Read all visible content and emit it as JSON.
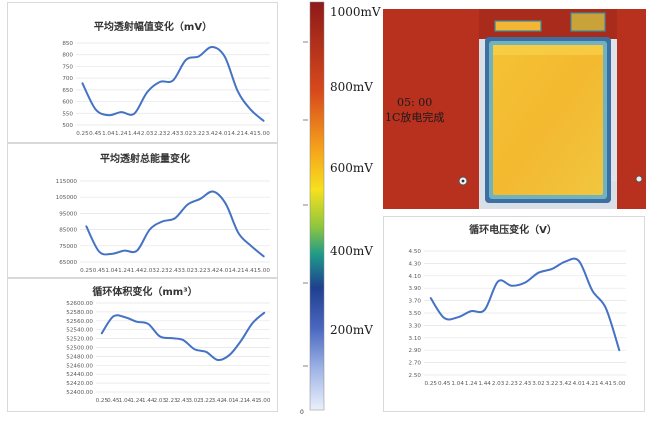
{
  "color_scale": {
    "labels": [
      "1000mV",
      "800mV",
      "600mV",
      "400mV",
      "200mV"
    ],
    "axis_zero": "0"
  },
  "heatmap": {
    "time_text": "05: 00",
    "status_text": "1C放电完成"
  },
  "chart_data": [
    {
      "type": "line",
      "title": "平均透射幅值变化（mV）",
      "categories": [
        "0.25",
        "0.45",
        "1.04",
        "1.24",
        "1.44",
        "2.03",
        "2.23",
        "2.43",
        "3.02",
        "3.22",
        "3.42",
        "4.01",
        "4.21",
        "4.41",
        "5.00"
      ],
      "values": [
        678,
        568,
        542,
        555,
        548,
        640,
        684,
        690,
        778,
        793,
        833,
        792,
        645,
        566,
        518
      ],
      "yticks": [
        500,
        550,
        600,
        650,
        700,
        750,
        800,
        850
      ],
      "ytick_labels": [
        "500",
        "550",
        "600",
        "650",
        "700",
        "750",
        "800",
        "850"
      ],
      "ylim": [
        500,
        850
      ],
      "grid": true,
      "color": "#4472c4"
    },
    {
      "type": "line",
      "title": "平均透射总能量变化",
      "categories": [
        "0.25",
        "0.45",
        "1.04",
        "1.24",
        "1.44",
        "2.03",
        "2.23",
        "2.43",
        "3.02",
        "3.22",
        "3.42",
        "4.01",
        "4.21",
        "4.41",
        "5.00"
      ],
      "values": [
        87000,
        71500,
        70000,
        72000,
        72000,
        85000,
        90000,
        92000,
        100500,
        104000,
        108500,
        101000,
        83000,
        75000,
        68500
      ],
      "yticks": [
        65000,
        75000,
        85000,
        95000,
        105000,
        115000
      ],
      "ytick_labels": [
        "65000",
        "75000",
        "85000",
        "95000",
        "105000",
        "115000"
      ],
      "ylim": [
        65000,
        115000
      ],
      "grid": true,
      "color": "#4472c4"
    },
    {
      "type": "line",
      "title": "循环体积变化（mm³）",
      "categories": [
        "0.25",
        "0.45",
        "1.04",
        "1.24",
        "1.44",
        "2.03",
        "2.23",
        "2.43",
        "3.02",
        "3.22",
        "3.42",
        "4.01",
        "4.21",
        "4.41",
        "5.00"
      ],
      "values": [
        52532,
        52570,
        52568,
        52558,
        52553,
        52525,
        52521,
        52517,
        52496,
        52490,
        52472,
        52483,
        52515,
        52555,
        52578
      ],
      "yticks": [
        52400,
        52420,
        52440,
        52460,
        52480,
        52500,
        52520,
        52540,
        52560,
        52580,
        52600
      ],
      "ytick_labels": [
        "52400.00",
        "52420.00",
        "52440.00",
        "52460.00",
        "52480.00",
        "52500.00",
        "52520.00",
        "52540.00",
        "52560.00",
        "52580.00",
        "52600.00"
      ],
      "ylim": [
        52400,
        52600
      ],
      "grid": true,
      "color": "#4472c4"
    },
    {
      "type": "line",
      "title": "循环电压变化（V）",
      "categories": [
        "0.25",
        "0.45",
        "1.04",
        "1.24",
        "1.44",
        "2.03",
        "2.23",
        "2.43",
        "3.02",
        "3.22",
        "3.42",
        "4.01",
        "4.21",
        "4.41",
        "5.00"
      ],
      "values": [
        3.74,
        3.42,
        3.43,
        3.53,
        3.55,
        4.01,
        3.94,
        3.99,
        4.15,
        4.21,
        4.33,
        4.34,
        3.86,
        3.58,
        2.9
      ],
      "yticks": [
        2.5,
        2.7,
        2.9,
        3.1,
        3.3,
        3.5,
        3.7,
        3.9,
        4.1,
        4.3,
        4.5
      ],
      "ytick_labels": [
        "2.50",
        "2.70",
        "2.90",
        "3.10",
        "3.30",
        "3.50",
        "3.70",
        "3.90",
        "4.10",
        "4.30",
        "4.50"
      ],
      "ylim": [
        2.5,
        4.5
      ],
      "grid": true,
      "color": "#4472c4"
    }
  ]
}
